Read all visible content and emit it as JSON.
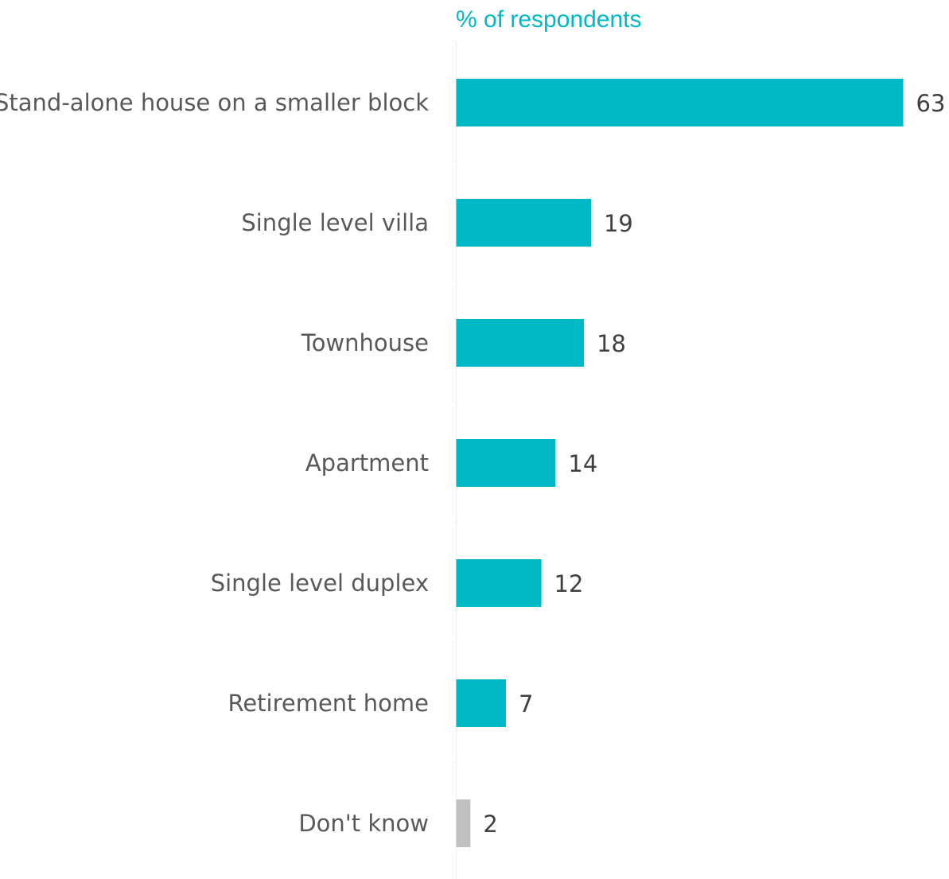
{
  "chart_data": {
    "type": "bar",
    "orientation": "horizontal",
    "title": "",
    "xlabel": "% of respondents",
    "ylabel": "",
    "categories": [
      "Stand-alone house on a smaller block",
      "Single level villa",
      "Townhouse",
      "Apartment",
      "Single level duplex",
      "Retirement home",
      "Don't know"
    ],
    "values": [
      63,
      19,
      18,
      14,
      12,
      7,
      2
    ],
    "value_labels": [
      "63",
      "19",
      "18",
      "14",
      "12",
      "7",
      "2"
    ],
    "xlim": [
      0,
      63
    ],
    "grid": false,
    "legend": "none"
  },
  "colors": {
    "bar": "#00B9C6",
    "bar_dont_know": "#C0C0C0",
    "axis_title": "#00B9C6",
    "axis_line": "#F0F0F0"
  }
}
